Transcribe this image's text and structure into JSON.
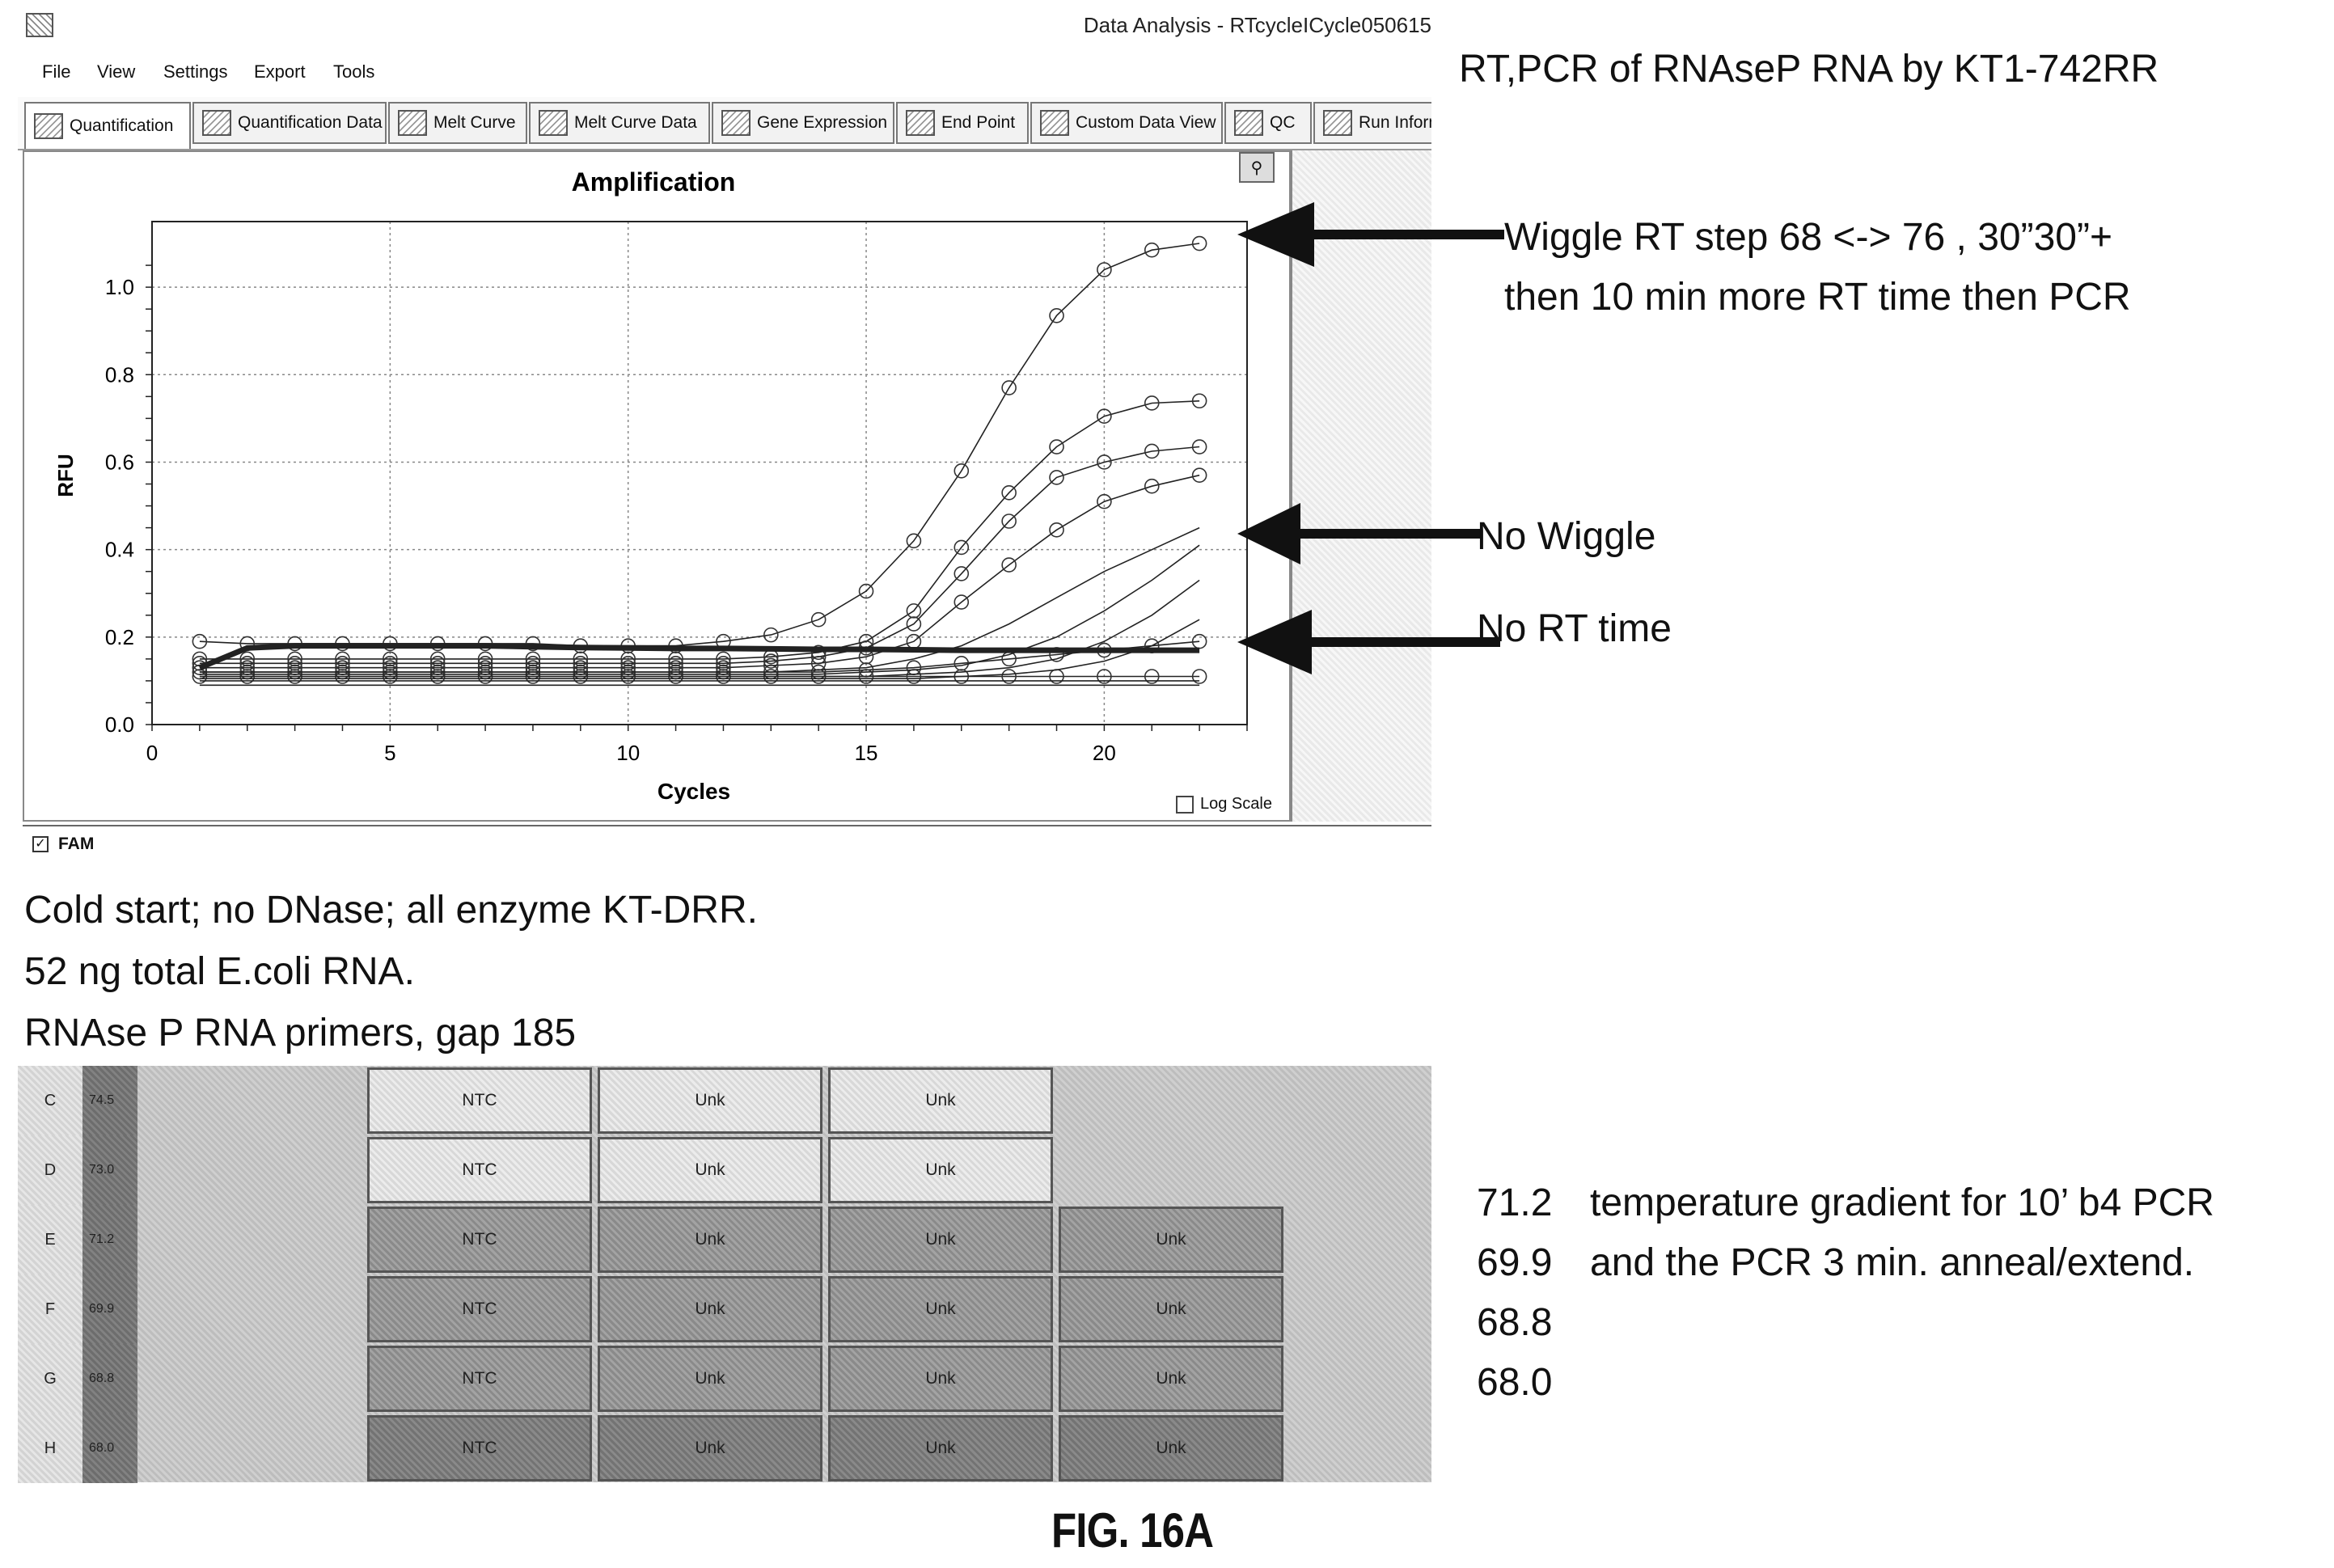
{
  "window": {
    "title": "Data Analysis - RTcycleICycle050615",
    "menu": [
      "File",
      "View",
      "Settings",
      "Export",
      "Tools"
    ],
    "tabs": [
      {
        "label": "Quantification",
        "active": true
      },
      {
        "label": "Quantification Data"
      },
      {
        "label": "Melt Curve"
      },
      {
        "label": "Melt Curve Data"
      },
      {
        "label": "Gene Expression"
      },
      {
        "label": "End Point"
      },
      {
        "label": "Custom Data View"
      },
      {
        "label": "QC"
      },
      {
        "label": "Run Informa"
      }
    ]
  },
  "chart": {
    "fam_label": "FAM",
    "fam_checked": true,
    "log_scale_label": "Log Scale",
    "log_scale_checked": false
  },
  "chart_data": {
    "type": "line",
    "title": "Amplification",
    "xlabel": "Cycles",
    "ylabel": "RFU",
    "xlim": [
      0,
      23
    ],
    "ylim": [
      0,
      1.15
    ],
    "xticks": [
      0,
      5,
      10,
      15,
      20
    ],
    "yticks": [
      "0.0",
      "0.2",
      "0.4",
      "0.6",
      "0.8",
      "1.0"
    ],
    "grid": true,
    "series": [
      {
        "marker": true,
        "x": [
          1,
          2,
          3,
          4,
          5,
          6,
          7,
          8,
          9,
          10,
          11,
          12,
          13,
          14,
          15,
          16,
          17,
          18,
          19,
          20,
          21,
          22
        ],
        "values": [
          0.19,
          0.185,
          0.185,
          0.185,
          0.185,
          0.185,
          0.185,
          0.185,
          0.18,
          0.18,
          0.18,
          0.19,
          0.205,
          0.24,
          0.305,
          0.42,
          0.58,
          0.77,
          0.935,
          1.04,
          1.085,
          1.1
        ]
      },
      {
        "marker": true,
        "x": [
          1,
          2,
          3,
          4,
          5,
          6,
          7,
          8,
          9,
          10,
          11,
          12,
          13,
          14,
          15,
          16,
          17,
          18,
          19,
          20,
          21,
          22
        ],
        "values": [
          0.15,
          0.15,
          0.15,
          0.15,
          0.15,
          0.15,
          0.15,
          0.15,
          0.15,
          0.15,
          0.15,
          0.15,
          0.155,
          0.165,
          0.19,
          0.26,
          0.405,
          0.53,
          0.635,
          0.705,
          0.735,
          0.74
        ]
      },
      {
        "marker": true,
        "x": [
          1,
          2,
          3,
          4,
          5,
          6,
          7,
          8,
          9,
          10,
          11,
          12,
          13,
          14,
          15,
          16,
          17,
          18,
          19,
          20,
          21,
          22
        ],
        "values": [
          0.14,
          0.14,
          0.14,
          0.14,
          0.14,
          0.14,
          0.14,
          0.14,
          0.14,
          0.14,
          0.14,
          0.14,
          0.145,
          0.155,
          0.175,
          0.23,
          0.345,
          0.465,
          0.565,
          0.6,
          0.625,
          0.635
        ]
      },
      {
        "marker": true,
        "x": [
          1,
          2,
          3,
          4,
          5,
          6,
          7,
          8,
          9,
          10,
          11,
          12,
          13,
          14,
          15,
          16,
          17,
          18,
          19,
          20,
          21,
          22
        ],
        "values": [
          0.13,
          0.13,
          0.13,
          0.13,
          0.13,
          0.13,
          0.13,
          0.13,
          0.13,
          0.13,
          0.13,
          0.13,
          0.135,
          0.14,
          0.155,
          0.19,
          0.28,
          0.365,
          0.445,
          0.51,
          0.545,
          0.57
        ]
      },
      {
        "marker": true,
        "x": [
          1,
          2,
          3,
          4,
          5,
          6,
          7,
          8,
          9,
          10,
          11,
          12,
          13,
          14,
          15,
          16,
          17,
          18,
          19,
          20,
          21,
          22
        ],
        "values": [
          0.12,
          0.12,
          0.12,
          0.12,
          0.12,
          0.12,
          0.12,
          0.12,
          0.12,
          0.12,
          0.12,
          0.12,
          0.12,
          0.12,
          0.125,
          0.13,
          0.14,
          0.15,
          0.16,
          0.17,
          0.18,
          0.19
        ]
      },
      {
        "marker": true,
        "x": [
          1,
          2,
          3,
          4,
          5,
          6,
          7,
          8,
          9,
          10,
          11,
          12,
          13,
          14,
          15,
          16,
          17,
          18,
          19,
          20,
          21,
          22
        ],
        "values": [
          0.11,
          0.11,
          0.11,
          0.11,
          0.11,
          0.11,
          0.11,
          0.11,
          0.11,
          0.11,
          0.11,
          0.11,
          0.11,
          0.11,
          0.11,
          0.11,
          0.11,
          0.11,
          0.11,
          0.11,
          0.11,
          0.11
        ]
      },
      {
        "marker": false,
        "x": [
          1,
          2,
          3,
          4,
          5,
          6,
          7,
          8,
          9,
          10,
          11,
          12,
          13,
          14,
          15,
          16,
          17,
          18,
          19,
          20,
          21,
          22
        ],
        "values": [
          0.12,
          0.12,
          0.12,
          0.12,
          0.12,
          0.12,
          0.12,
          0.12,
          0.12,
          0.12,
          0.12,
          0.12,
          0.12,
          0.125,
          0.13,
          0.15,
          0.18,
          0.23,
          0.29,
          0.35,
          0.4,
          0.45
        ]
      },
      {
        "marker": false,
        "x": [
          1,
          2,
          3,
          4,
          5,
          6,
          7,
          8,
          9,
          10,
          11,
          12,
          13,
          14,
          15,
          16,
          17,
          18,
          19,
          20,
          21,
          22
        ],
        "values": [
          0.115,
          0.115,
          0.115,
          0.115,
          0.115,
          0.115,
          0.115,
          0.115,
          0.115,
          0.115,
          0.115,
          0.115,
          0.115,
          0.115,
          0.12,
          0.125,
          0.135,
          0.16,
          0.2,
          0.26,
          0.33,
          0.41
        ]
      },
      {
        "marker": false,
        "x": [
          1,
          2,
          3,
          4,
          5,
          6,
          7,
          8,
          9,
          10,
          11,
          12,
          13,
          14,
          15,
          16,
          17,
          18,
          19,
          20,
          21,
          22
        ],
        "values": [
          0.11,
          0.11,
          0.11,
          0.11,
          0.11,
          0.11,
          0.11,
          0.11,
          0.11,
          0.11,
          0.11,
          0.11,
          0.11,
          0.11,
          0.11,
          0.115,
          0.12,
          0.13,
          0.15,
          0.19,
          0.25,
          0.33
        ]
      },
      {
        "marker": false,
        "x": [
          1,
          2,
          3,
          4,
          5,
          6,
          7,
          8,
          9,
          10,
          11,
          12,
          13,
          14,
          15,
          16,
          17,
          18,
          19,
          20,
          21,
          22
        ],
        "values": [
          0.105,
          0.105,
          0.105,
          0.105,
          0.105,
          0.105,
          0.105,
          0.105,
          0.105,
          0.105,
          0.105,
          0.105,
          0.105,
          0.105,
          0.105,
          0.105,
          0.11,
          0.115,
          0.125,
          0.145,
          0.18,
          0.24
        ]
      },
      {
        "marker": false,
        "x": [
          1,
          2,
          3,
          4,
          5,
          6,
          7,
          8,
          9,
          10,
          11,
          12,
          13,
          14,
          15,
          16,
          17,
          18,
          19,
          20,
          21,
          22
        ],
        "values": [
          0.1,
          0.1,
          0.1,
          0.1,
          0.1,
          0.1,
          0.1,
          0.1,
          0.1,
          0.1,
          0.1,
          0.1,
          0.1,
          0.1,
          0.1,
          0.1,
          0.1,
          0.1,
          0.1,
          0.1,
          0.1,
          0.1
        ]
      },
      {
        "marker": false,
        "x": [
          1,
          2,
          3,
          4,
          5,
          6,
          7,
          8,
          9,
          10,
          11,
          12,
          13,
          14,
          15,
          16,
          17,
          18,
          19,
          20,
          21,
          22
        ],
        "values": [
          0.09,
          0.09,
          0.09,
          0.09,
          0.09,
          0.09,
          0.09,
          0.09,
          0.09,
          0.09,
          0.09,
          0.09,
          0.09,
          0.09,
          0.09,
          0.09,
          0.09,
          0.09,
          0.09,
          0.09,
          0.09,
          0.09
        ]
      },
      {
        "marker": false,
        "bold": true,
        "x": [
          1,
          2,
          3,
          4,
          5,
          6,
          7,
          8,
          9,
          10,
          11,
          12,
          13,
          14,
          15,
          16,
          17,
          18,
          19,
          20,
          21,
          22
        ],
        "values": [
          0.13,
          0.175,
          0.18,
          0.18,
          0.18,
          0.18,
          0.18,
          0.178,
          0.176,
          0.175,
          0.174,
          0.174,
          0.173,
          0.172,
          0.172,
          0.171,
          0.17,
          0.17,
          0.17,
          0.17,
          0.17,
          0.17
        ]
      }
    ]
  },
  "annotations": {
    "heading": "RT,PCR of RNAseP RNA by KT1-742RR",
    "wiggle_line1": "Wiggle RT step 68 <-> 76 , 30”30”+",
    "wiggle_line2": "then 10 min more RT time then PCR",
    "no_wiggle": "No Wiggle",
    "no_rt": "No RT time",
    "conditions": [
      "Cold start; no DNase; all enzyme KT-DRR.",
      "52 ng total E.coli RNA.",
      "RNAse P RNA primers, gap 185"
    ],
    "temps": [
      "71.2",
      "69.9",
      "68.8",
      "68.0"
    ],
    "temp_note1": "temperature gradient for 10’ b4 PCR",
    "temp_note2": "and the PCR 3 min. anneal/extend.",
    "figure_label": "FIG. 16A"
  },
  "plate": {
    "rows": [
      {
        "row": "C",
        "temp": "74.5",
        "wells": [
          "NTC",
          "Unk",
          "Unk",
          ""
        ],
        "shade": "light"
      },
      {
        "row": "D",
        "temp": "73.0",
        "wells": [
          "NTC",
          "Unk",
          "Unk",
          ""
        ],
        "shade": "light"
      },
      {
        "row": "E",
        "temp": "71.2",
        "wells": [
          "NTC",
          "Unk",
          "Unk",
          "Unk"
        ],
        "shade": "dark"
      },
      {
        "row": "F",
        "temp": "69.9",
        "wells": [
          "NTC",
          "Unk",
          "Unk",
          "Unk"
        ],
        "shade": "dark"
      },
      {
        "row": "G",
        "temp": "68.8",
        "wells": [
          "NTC",
          "Unk",
          "Unk",
          "Unk"
        ],
        "shade": "dark"
      },
      {
        "row": "H",
        "temp": "68.0",
        "wells": [
          "NTC",
          "Unk",
          "Unk",
          "Unk"
        ],
        "shade": "darker"
      }
    ]
  }
}
